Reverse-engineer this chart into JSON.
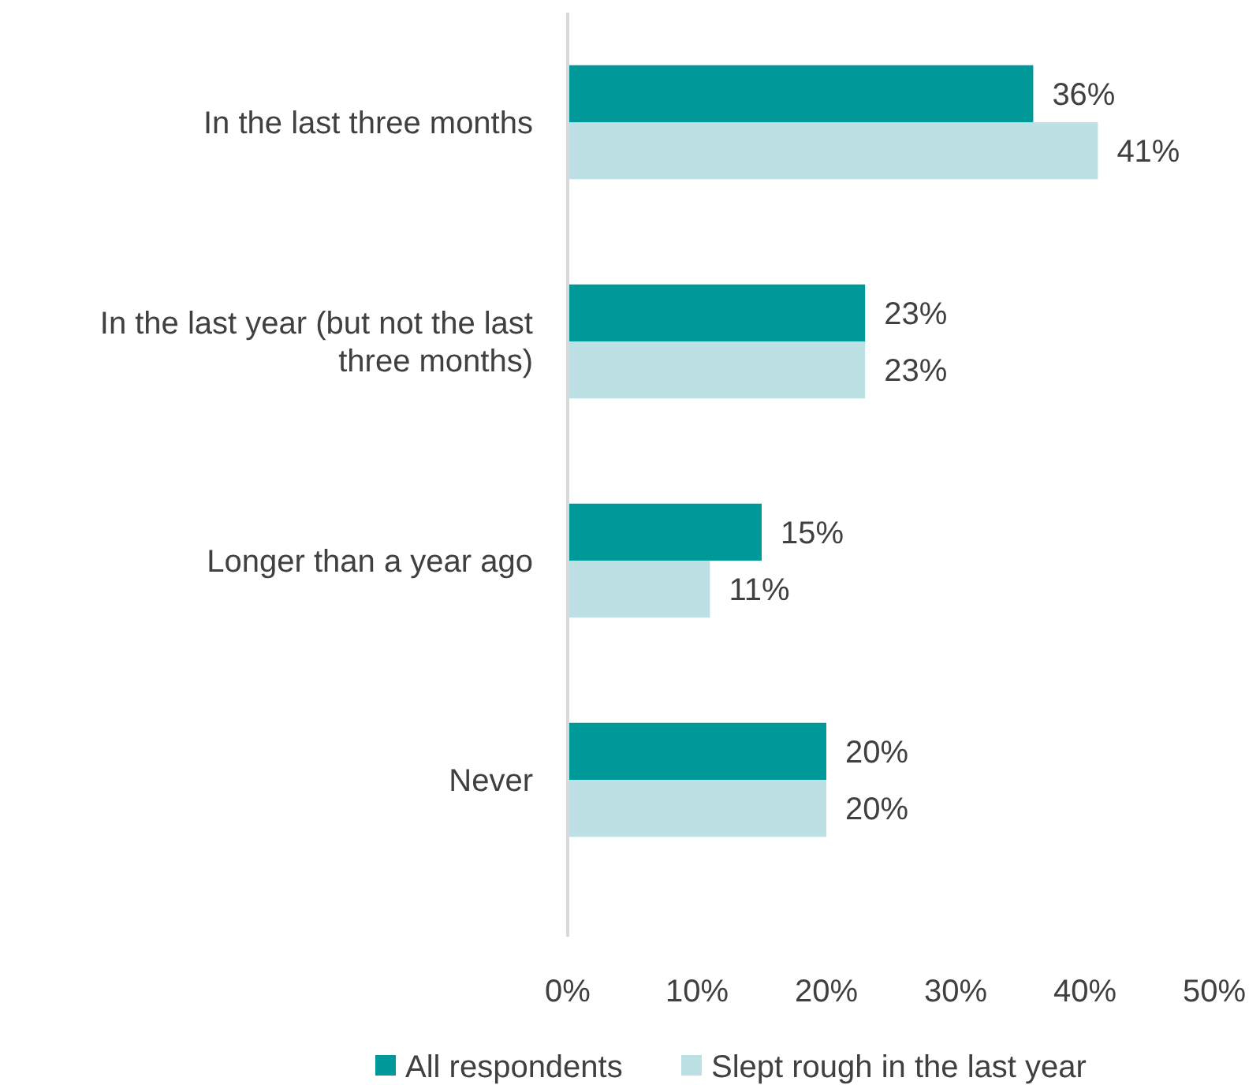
{
  "chart_data": {
    "type": "bar",
    "orientation": "horizontal",
    "categories": [
      "In the last three months",
      "In the last year (but not the last three months)",
      "Longer than a year ago",
      "Never"
    ],
    "series": [
      {
        "name": "All respondents",
        "color": "#009999",
        "values": [
          36,
          23,
          15,
          20
        ],
        "value_labels": [
          "36%",
          "23%",
          "15%",
          "20%"
        ]
      },
      {
        "name": "Slept rough in the last year",
        "color": "#bce0e3",
        "values": [
          41,
          23,
          11,
          20
        ],
        "value_labels": [
          "41%",
          "23%",
          "11%",
          "20%"
        ]
      }
    ],
    "xlim": [
      0,
      50
    ],
    "xticks": [
      {
        "value": 0,
        "label": "0%"
      },
      {
        "value": 10,
        "label": "10%"
      },
      {
        "value": 20,
        "label": "20%"
      },
      {
        "value": 30,
        "label": "30%"
      },
      {
        "value": 40,
        "label": "40%"
      },
      {
        "value": 50,
        "label": "50%"
      }
    ],
    "grid": false,
    "legend": "bottom"
  }
}
